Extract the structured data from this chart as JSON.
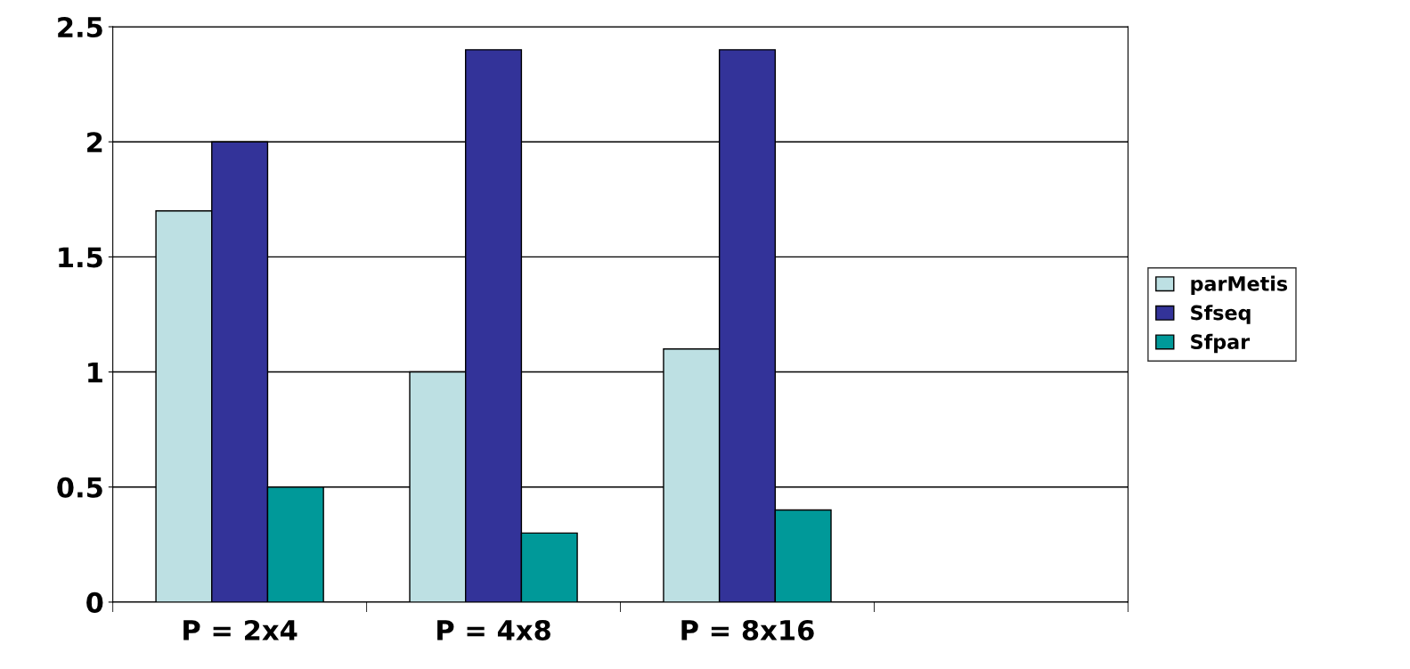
{
  "chart_data": {
    "type": "bar",
    "categories": [
      "P = 2x4",
      "P = 4x8",
      "P = 8x16",
      null
    ],
    "series": [
      {
        "name": "parMetis",
        "color": "#bde0e3",
        "values": [
          1.7,
          1.0,
          1.1,
          null
        ]
      },
      {
        "name": "Sfseq",
        "color": "#333399",
        "values": [
          2.0,
          2.4,
          2.4,
          null
        ]
      },
      {
        "name": "Sfpar",
        "color": "#009999",
        "values": [
          0.5,
          0.3,
          0.4,
          null
        ]
      }
    ],
    "ylim": [
      0,
      2.5
    ],
    "yticks": [
      0,
      0.5,
      1,
      1.5,
      2,
      2.5
    ],
    "grid": "y",
    "legend": "right"
  }
}
